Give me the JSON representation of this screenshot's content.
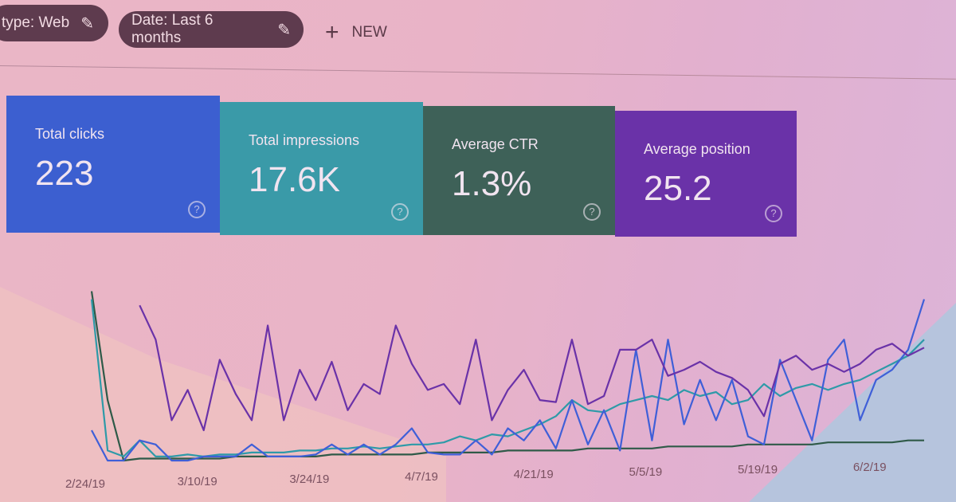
{
  "filters": [
    {
      "label": "type: Web",
      "icon": "pencil-icon"
    },
    {
      "label": "Date: Last 6 months",
      "icon": "pencil-icon"
    }
  ],
  "new_button": {
    "label": "NEW",
    "icon": "plus-icon"
  },
  "metrics": [
    {
      "label": "Total clicks",
      "value": "223",
      "color": "#3c5fd0"
    },
    {
      "label": "Total impressions",
      "value": "17.6K",
      "color": "#3a9aa8"
    },
    {
      "label": "Average CTR",
      "value": "1.3%",
      "color": "#3e6158"
    },
    {
      "label": "Average position",
      "value": "25.2",
      "color": "#6a32a8"
    }
  ],
  "help_icon": "?",
  "chart_data": {
    "type": "line",
    "title": "",
    "xlabel": "",
    "ylabel": "",
    "grid": false,
    "x_tick_labels": [
      "2/24/19",
      "3/10/19",
      "3/24/19",
      "4/7/19",
      "4/21/19",
      "5/5/19",
      "5/19/19",
      "6/2/19"
    ],
    "x": [
      "2/24",
      "2/26",
      "2/28",
      "3/2",
      "3/4",
      "3/6",
      "3/8",
      "3/10",
      "3/12",
      "3/14",
      "3/16",
      "3/18",
      "3/20",
      "3/22",
      "3/24",
      "3/26",
      "3/28",
      "3/30",
      "4/1",
      "4/3",
      "4/5",
      "4/7",
      "4/9",
      "4/11",
      "4/13",
      "4/15",
      "4/17",
      "4/19",
      "4/21",
      "4/23",
      "4/25",
      "4/27",
      "4/29",
      "5/1",
      "5/3",
      "5/5",
      "5/7",
      "5/9",
      "5/11",
      "5/13",
      "5/15",
      "5/17",
      "5/19",
      "5/21",
      "5/23",
      "5/25",
      "5/27",
      "5/29",
      "5/31",
      "6/2",
      "6/4",
      "6/6",
      "6/8"
    ],
    "ylim": [
      0,
      100
    ],
    "series": [
      {
        "metric": "Average position",
        "color": "#6a32a8",
        "values": [
          null,
          null,
          null,
          77,
          60,
          20,
          35,
          15,
          50,
          33,
          20,
          67,
          20,
          45,
          30,
          49,
          25,
          38,
          33,
          67,
          48,
          35,
          38,
          28,
          60,
          20,
          35,
          45,
          30,
          29,
          60,
          28,
          32,
          55,
          55,
          60,
          42,
          45,
          49,
          44,
          41,
          35,
          22,
          48,
          52,
          45,
          48,
          44,
          48,
          55,
          58,
          52,
          56
        ]
      },
      {
        "metric": "Total clicks",
        "color": "#3f5fd8",
        "values": [
          15,
          0,
          0,
          10,
          8,
          0,
          0,
          2,
          2,
          2,
          8,
          2,
          2,
          2,
          3,
          8,
          3,
          8,
          3,
          8,
          16,
          4,
          3,
          3,
          10,
          3,
          16,
          10,
          20,
          6,
          30,
          8,
          25,
          5,
          55,
          10,
          60,
          18,
          40,
          20,
          40,
          12,
          8,
          50,
          30,
          10,
          50,
          60,
          20,
          40,
          45,
          55,
          80
        ]
      },
      {
        "metric": "Total impressions",
        "color": "#2e9aa8",
        "values": [
          80,
          5,
          2,
          10,
          2,
          2,
          3,
          2,
          3,
          3,
          4,
          4,
          4,
          5,
          5,
          6,
          6,
          7,
          6,
          7,
          8,
          8,
          9,
          12,
          10,
          13,
          12,
          15,
          18,
          22,
          30,
          25,
          24,
          28,
          30,
          32,
          30,
          35,
          32,
          34,
          28,
          30,
          38,
          32,
          36,
          38,
          35,
          38,
          40,
          44,
          48,
          52,
          60
        ]
      },
      {
        "metric": "Average CTR",
        "color": "#2f5a48",
        "values": [
          84,
          30,
          0,
          1,
          1,
          1,
          1,
          1,
          1,
          2,
          2,
          2,
          2,
          2,
          2,
          3,
          3,
          3,
          3,
          3,
          3,
          4,
          4,
          4,
          4,
          4,
          5,
          5,
          5,
          5,
          5,
          6,
          6,
          6,
          6,
          6,
          7,
          7,
          7,
          7,
          7,
          8,
          8,
          8,
          8,
          8,
          9,
          9,
          9,
          9,
          9,
          10,
          10
        ]
      }
    ]
  }
}
